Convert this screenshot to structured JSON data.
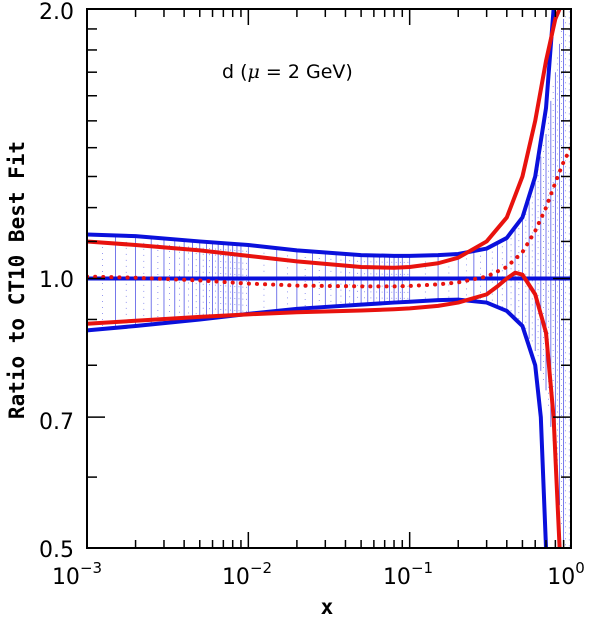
{
  "chart_data": {
    "type": "line",
    "title": "",
    "xlabel": "x",
    "ylabel": "Ratio to CT10 Best Fit",
    "xscale": "log",
    "yscale": "log",
    "xlim": [
      0.001,
      1
    ],
    "ylim": [
      0.5,
      2.0
    ],
    "x_tick_labels": [
      {
        "base": "10",
        "exp": "−3"
      },
      {
        "base": "10",
        "exp": "−2"
      },
      {
        "base": "10",
        "exp": "−1"
      },
      {
        "base": "10",
        "exp": "0"
      }
    ],
    "y_tick_labels": [
      "0.5",
      "0.7",
      "1.0",
      "2.0"
    ],
    "annotation": {
      "prefix": "d (",
      "mu": "μ",
      "suffix": " = 2 GeV)"
    },
    "colors": {
      "blue": "#0a10dc",
      "red": "#e8120e",
      "axis": "#000000"
    },
    "band": {
      "name": "CT10 uncertainty band",
      "color": "#0a10dc",
      "x": [
        0.001,
        0.002,
        0.005,
        0.01,
        0.02,
        0.05,
        0.08,
        0.1,
        0.15,
        0.2,
        0.3,
        0.4,
        0.5,
        0.6,
        0.7,
        0.8,
        0.9,
        1.0
      ],
      "upper": [
        1.12,
        1.115,
        1.1,
        1.09,
        1.075,
        1.062,
        1.06,
        1.06,
        1.062,
        1.065,
        1.08,
        1.11,
        1.17,
        1.28,
        1.45,
        1.7,
        1.95,
        2.0
      ],
      "lower": [
        0.875,
        0.885,
        0.9,
        0.913,
        0.925,
        0.935,
        0.94,
        0.942,
        0.946,
        0.947,
        0.94,
        0.92,
        0.885,
        0.83,
        0.75,
        0.62,
        0.5,
        0.5
      ]
    },
    "series": [
      {
        "style": "blue-solid",
        "x": [
          0.001,
          0.002,
          0.005,
          0.01,
          0.02,
          0.05,
          0.08,
          0.1,
          0.15,
          0.2,
          0.3,
          0.4,
          0.5,
          0.6,
          0.7,
          0.78
        ],
        "values": [
          1.12,
          1.115,
          1.1,
          1.09,
          1.075,
          1.062,
          1.06,
          1.06,
          1.062,
          1.065,
          1.08,
          1.11,
          1.17,
          1.3,
          1.55,
          2.0
        ]
      },
      {
        "style": "blue-solid",
        "x": [
          0.001,
          0.002,
          0.005,
          0.01,
          0.02,
          0.05,
          0.08,
          0.1,
          0.15,
          0.2,
          0.3,
          0.4,
          0.5,
          0.6,
          0.65,
          0.7
        ],
        "values": [
          0.875,
          0.885,
          0.9,
          0.913,
          0.925,
          0.935,
          0.94,
          0.942,
          0.946,
          0.947,
          0.94,
          0.92,
          0.885,
          0.8,
          0.7,
          0.5
        ]
      },
      {
        "style": "blue-solid",
        "x": [
          0.001,
          1.0
        ],
        "values": [
          1.0,
          1.0
        ]
      },
      {
        "style": "red-solid",
        "x": [
          0.001,
          0.002,
          0.005,
          0.01,
          0.02,
          0.05,
          0.08,
          0.1,
          0.15,
          0.2,
          0.3,
          0.4,
          0.5,
          0.6,
          0.7,
          0.8,
          0.85
        ],
        "values": [
          1.1,
          1.09,
          1.075,
          1.06,
          1.045,
          1.03,
          1.028,
          1.03,
          1.04,
          1.055,
          1.1,
          1.17,
          1.3,
          1.5,
          1.75,
          1.95,
          2.0
        ]
      },
      {
        "style": "red-solid",
        "x": [
          0.001,
          0.002,
          0.005,
          0.01,
          0.02,
          0.05,
          0.08,
          0.1,
          0.15,
          0.2,
          0.3,
          0.35,
          0.4,
          0.45,
          0.5,
          0.6,
          0.7,
          0.78,
          0.85
        ],
        "values": [
          0.89,
          0.897,
          0.906,
          0.912,
          0.917,
          0.921,
          0.924,
          0.926,
          0.932,
          0.94,
          0.96,
          0.98,
          1.0,
          1.015,
          1.01,
          0.96,
          0.87,
          0.7,
          0.5
        ]
      },
      {
        "style": "red-dotted",
        "x": [
          0.001,
          0.002,
          0.005,
          0.01,
          0.02,
          0.05,
          0.08,
          0.1,
          0.15,
          0.2,
          0.3,
          0.4,
          0.5,
          0.6,
          0.7,
          0.8,
          0.9,
          1.0
        ],
        "values": [
          1.005,
          1.002,
          0.995,
          0.987,
          0.982,
          0.98,
          0.98,
          0.981,
          0.985,
          0.99,
          1.005,
          1.03,
          1.07,
          1.13,
          1.2,
          1.28,
          1.35,
          1.4
        ]
      }
    ]
  }
}
